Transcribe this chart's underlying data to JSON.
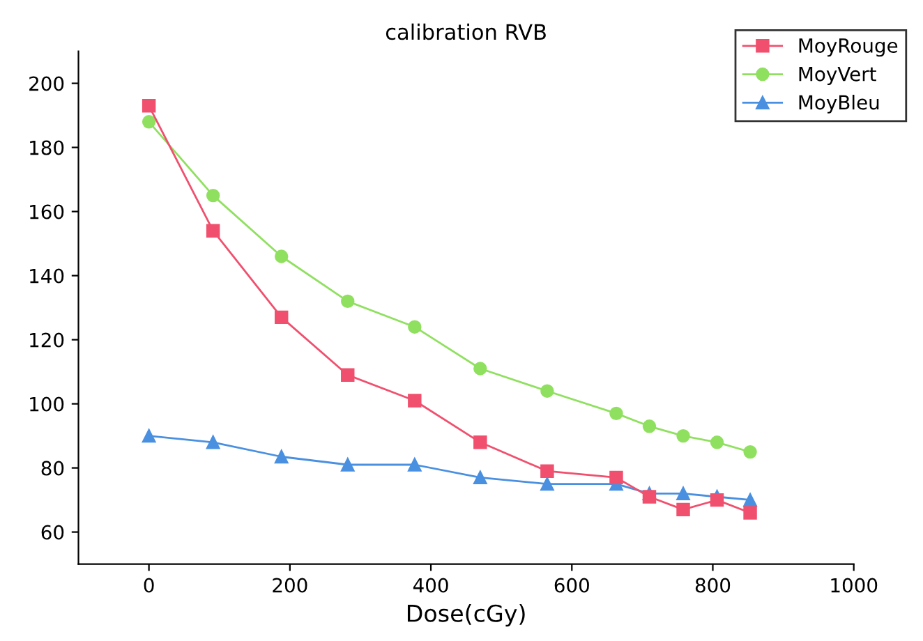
{
  "chart_data": {
    "type": "line",
    "title": "calibration RVB",
    "xlabel": "Dose(cGy)",
    "x": [
      0,
      91,
      188,
      282,
      377,
      470,
      565,
      663,
      710,
      758,
      806,
      853
    ],
    "series": [
      {
        "name": "MoyRouge",
        "color": "#f0506e",
        "marker": "square",
        "values": [
          193,
          154,
          127,
          109,
          101,
          88,
          79,
          77,
          71,
          67,
          70,
          66
        ]
      },
      {
        "name": "MoyVert",
        "color": "#90e060",
        "marker": "circle",
        "values": [
          188,
          165,
          146,
          132,
          124,
          111,
          104,
          97,
          93,
          90,
          88,
          85
        ]
      },
      {
        "name": "MoyBleu",
        "color": "#4a90e0",
        "marker": "triangle",
        "values": [
          90,
          88,
          83.5,
          81,
          81,
          77,
          75,
          75,
          72,
          72,
          71,
          70
        ]
      }
    ],
    "xlim": [
      -100,
      1000
    ],
    "xticks": [
      0,
      200,
      400,
      600,
      800,
      1000
    ],
    "ylim": [
      50,
      210
    ],
    "yticks": [
      60,
      80,
      100,
      120,
      140,
      160,
      180,
      200
    ],
    "grid": false,
    "legend": "top right",
    "line_style": "solid"
  }
}
